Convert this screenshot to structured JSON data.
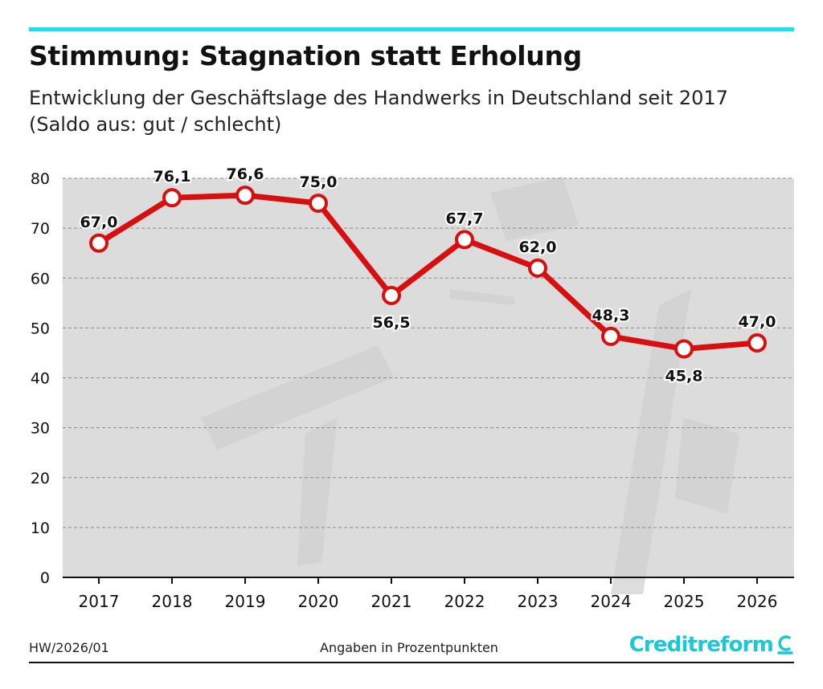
{
  "header": {
    "title": "Stimmung: Stagnation statt Erholung",
    "subtitle_line1": "Entwicklung der Geschäftslage des Handwerks in Deutschland seit 2017",
    "subtitle_line2": "(Saldo aus: gut / schlecht)"
  },
  "footer": {
    "code": "HW/2026/01",
    "note": "Angaben in Prozentpunkten",
    "logo_text": "Creditreform"
  },
  "colors": {
    "accent": "#19e3ea",
    "line": "#d80f0f",
    "logo": "#19c9d6",
    "plot_bg": "#dcdcdc"
  },
  "chart_data": {
    "type": "line",
    "categories": [
      "2017",
      "2018",
      "2019",
      "2020",
      "2021",
      "2022",
      "2023",
      "2024",
      "2025",
      "2026"
    ],
    "series": [
      {
        "values": [
          67.0,
          76.1,
          76.6,
          75.0,
          56.5,
          67.7,
          62.0,
          48.3,
          45.8,
          47.0
        ],
        "labels": [
          "67,0",
          "76,1",
          "76,6",
          "75,0",
          "56,5",
          "67,7",
          "62,0",
          "48,3",
          "45,8",
          "47,0"
        ]
      }
    ],
    "xlabel": "",
    "ylabel": "",
    "ylim": [
      0,
      80
    ],
    "yticks": [
      0,
      10,
      20,
      30,
      40,
      50,
      60,
      70,
      80
    ],
    "grid": true
  }
}
